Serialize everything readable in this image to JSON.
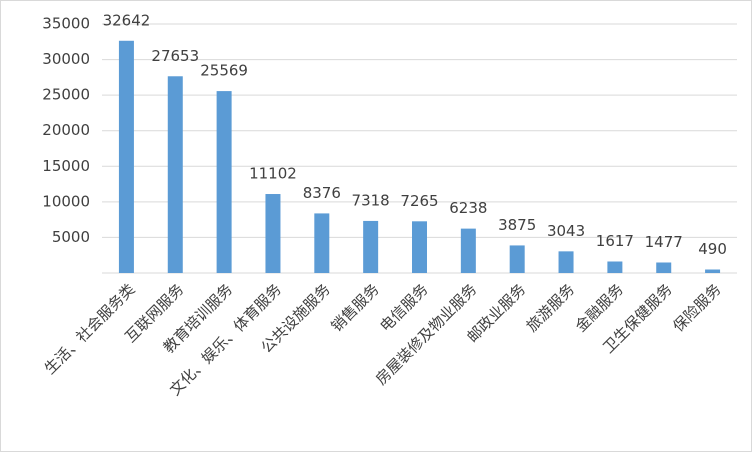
{
  "chart_data": {
    "type": "bar",
    "categories": [
      "生活、社会服务类",
      "互联网服务",
      "教育培训服务",
      "文化、娱乐、体育服务",
      "公共设施服务",
      "销售服务",
      "电信服务",
      "房屋装修及物业服务",
      "邮政业服务",
      "旅游服务",
      "金融服务",
      "卫生保健服务",
      "保险服务"
    ],
    "values": [
      32642,
      27653,
      25569,
      11102,
      8376,
      7318,
      7265,
      6238,
      3875,
      3043,
      1617,
      1477,
      490
    ],
    "color": "#5b9bd5",
    "ylim": [
      0,
      35000
    ],
    "yticks": [
      5000,
      10000,
      15000,
      20000,
      25000,
      30000,
      35000
    ],
    "grid": true
  }
}
